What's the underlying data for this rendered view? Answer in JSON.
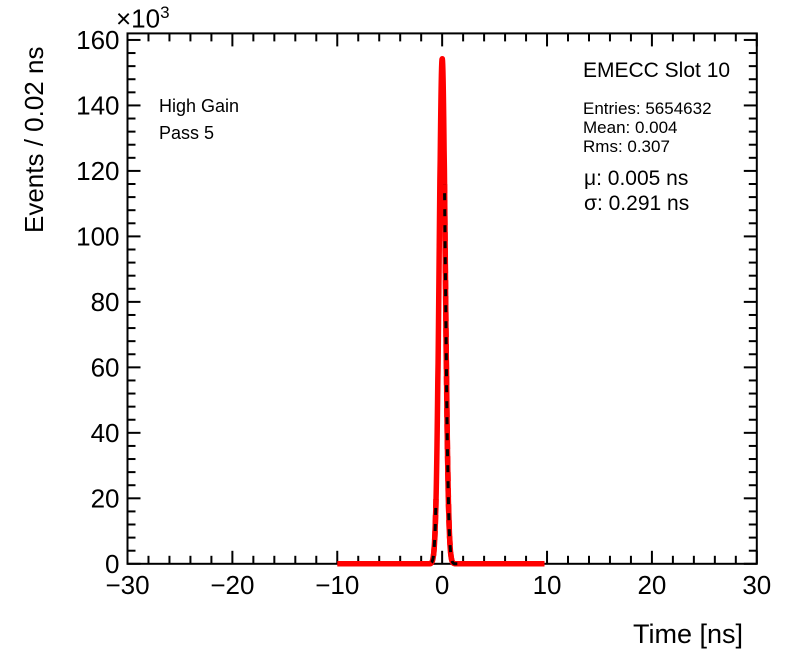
{
  "chart_data": {
    "type": "line",
    "subtype": "histogram_with_gaussian_fit",
    "title": "",
    "xlabel": "Time [ns]",
    "ylabel": "Events / 0.02 ns",
    "y_axis_multiplier": {
      "base": "×10",
      "exponent": "3"
    },
    "xlim": [
      -30,
      30
    ],
    "ylim": [
      0,
      162000
    ],
    "grid": false,
    "frame_color": "#000000",
    "x_ticks": {
      "values": [
        -30,
        -20,
        -10,
        0,
        10,
        20,
        30
      ],
      "labels": [
        "−30",
        "−20",
        "−10",
        "0",
        "10",
        "20",
        "30"
      ],
      "minor_step": 2
    },
    "y_ticks": {
      "values": [
        0,
        20000,
        40000,
        60000,
        80000,
        100000,
        120000,
        140000,
        160000
      ],
      "labels": [
        "0",
        "20",
        "40",
        "60",
        "80",
        "100",
        "120",
        "140",
        "160"
      ],
      "minor_step": 4000
    },
    "series": [
      {
        "name": "timing-histogram",
        "color": "#000000",
        "style": "solid",
        "peak_value": 153800,
        "center_ns": 0.004,
        "sigma_ns": 0.318,
        "bin_width_ns": 0.02,
        "range": [
          -10,
          10
        ]
      },
      {
        "name": "gaussian-fit",
        "color": "#ff0000",
        "style": "solid",
        "peak_value": 154300,
        "center_ns": 0.005,
        "sigma_ns": 0.291,
        "range": [
          -10,
          10
        ]
      }
    ]
  },
  "annotations": {
    "corner_label": {
      "line1": "High Gain",
      "line2": "Pass 5"
    },
    "stats_box": {
      "title": "EMECC Slot 10",
      "entries": "Entries: 5654632",
      "mean": "Mean: 0.004",
      "rms": "Rms: 0.307",
      "fit_mu": "μ: 0.005 ns",
      "fit_sigma": "σ: 0.291 ns"
    }
  }
}
